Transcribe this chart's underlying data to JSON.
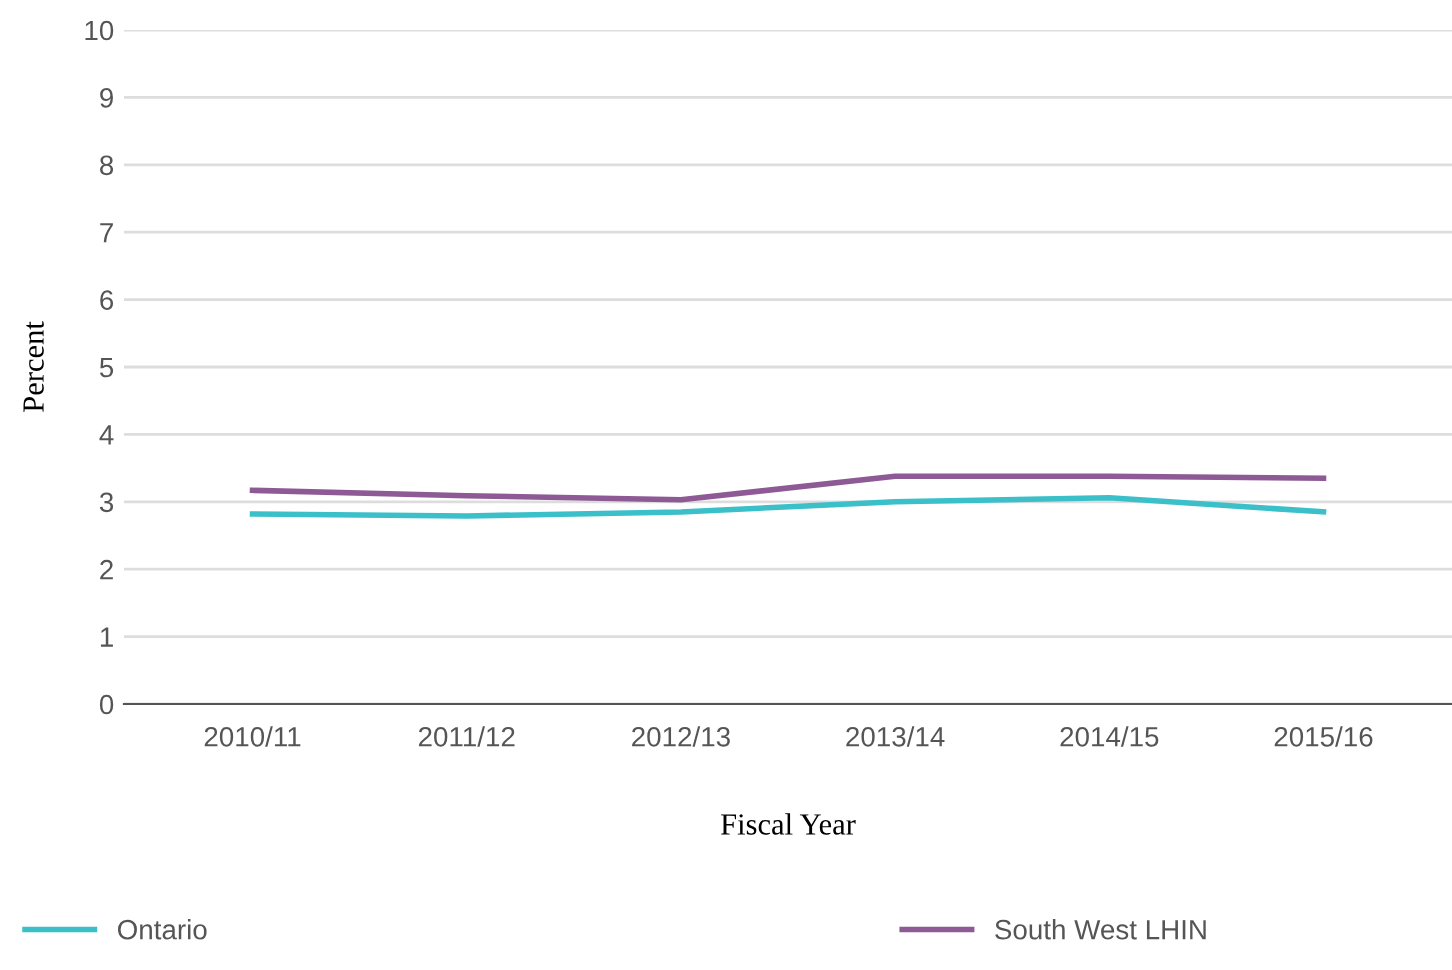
{
  "chart_data": {
    "type": "line",
    "xlabel": "Fiscal Year",
    "ylabel": "Percent",
    "categories": [
      "2010/11",
      "2011/12",
      "2012/13",
      "2013/14",
      "2014/15",
      "2015/16"
    ],
    "series": [
      {
        "name": "Ontario",
        "color": "#3bbfc9",
        "values": [
          2.82,
          2.79,
          2.85,
          3.0,
          3.06,
          2.85
        ]
      },
      {
        "name": "South West LHIN",
        "color": "#8e5a96",
        "values": [
          3.17,
          3.09,
          3.03,
          3.38,
          3.38,
          3.35
        ]
      }
    ],
    "ylim": [
      0,
      10
    ],
    "yticks": [
      0,
      1,
      2,
      3,
      4,
      5,
      6,
      7,
      8,
      9,
      10
    ],
    "grid": "y",
    "legend": "bottom",
    "marker": "none",
    "line_style": "solid"
  }
}
